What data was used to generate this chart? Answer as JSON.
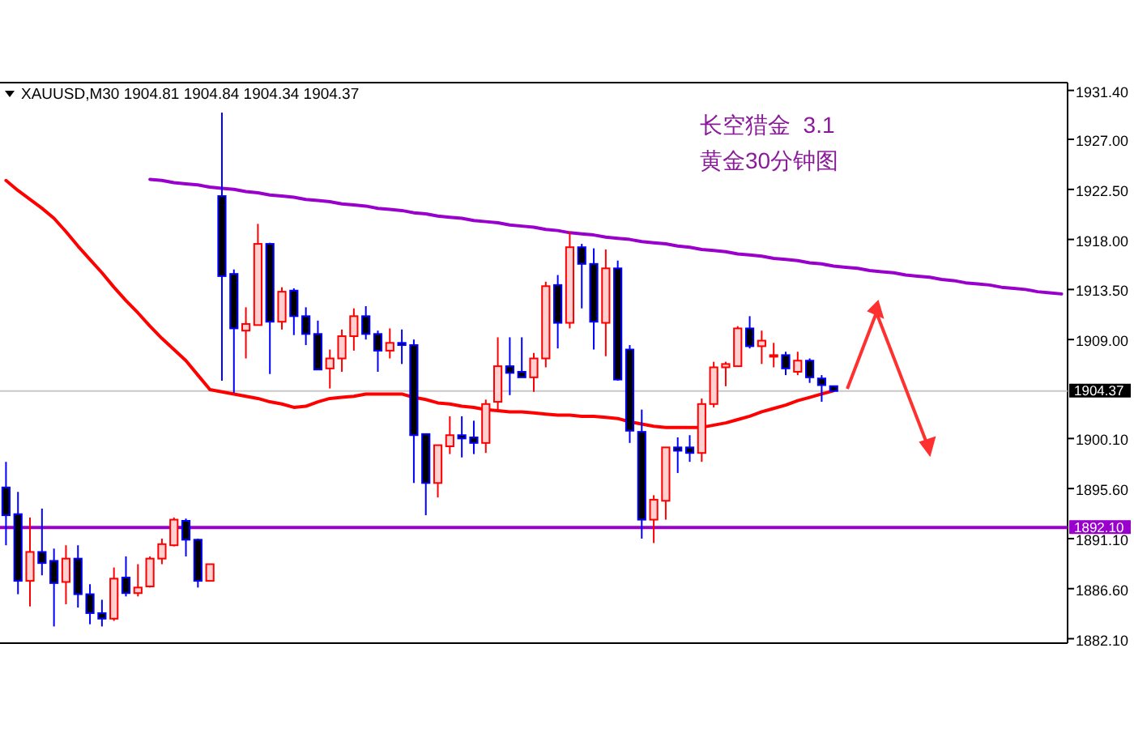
{
  "chart_data": {
    "type": "candlestick",
    "title": "XAUUSD,M30 1904.81 1904.84 1904.34 1904.37",
    "annotations": [
      "长空猎金  3.1",
      "黄金30分钟图"
    ],
    "categories": [
      null,
      null,
      null,
      null,
      null,
      null,
      null,
      null,
      null,
      null,
      null,
      null,
      null,
      null,
      null,
      null,
      null,
      null,
      null,
      null,
      null,
      null,
      null,
      null,
      null,
      null,
      null,
      null,
      null,
      null,
      null,
      null,
      null,
      null,
      null,
      null,
      null,
      null,
      null,
      null,
      null,
      null,
      null,
      null,
      null,
      null,
      null,
      null,
      null,
      null,
      null,
      null,
      null,
      null,
      null,
      null,
      null,
      null,
      null,
      null,
      null,
      null,
      null,
      null,
      null,
      null,
      null,
      null,
      null,
      null,
      null,
      null,
      null,
      null,
      null,
      null,
      null,
      null,
      null,
      null,
      null,
      null,
      null,
      null,
      null,
      null,
      null,
      null,
      null
    ],
    "ylim": [
      1881.7,
      1932.1
    ],
    "yticks": [
      {
        "value": 1931.4,
        "label": "1931.40"
      },
      {
        "value": 1927,
        "label": "1927.00"
      },
      {
        "value": 1922.5,
        "label": "1922.50"
      },
      {
        "value": 1918,
        "label": "1918.00"
      },
      {
        "value": 1913.5,
        "label": "1913.50"
      },
      {
        "value": 1909,
        "label": "1909.00"
      },
      {
        "value": 1900.1,
        "label": "1900.10"
      },
      {
        "value": 1895.6,
        "label": "1895.60"
      },
      {
        "value": 1891.1,
        "label": "1891.10"
      },
      {
        "value": 1886.6,
        "label": "1886.60"
      },
      {
        "value": 1882.1,
        "label": "1882.10"
      }
    ],
    "tick_labels": "y",
    "ohlc": [
      [
        1895.7,
        1898.0,
        1890.5,
        1893.2
      ],
      [
        1893.3,
        1895.3,
        1886.1,
        1887.3
      ],
      [
        1887.3,
        1893.0,
        1885.0,
        1889.9
      ],
      [
        1889.9,
        1893.8,
        1887.8,
        1888.9
      ],
      [
        1889.1,
        1890.2,
        1883.2,
        1887.1
      ],
      [
        1887.2,
        1890.5,
        1885.2,
        1889.3
      ],
      [
        1889.3,
        1890.5,
        1884.9,
        1886.1
      ],
      [
        1886.1,
        1887.0,
        1883.4,
        1884.4
      ],
      [
        1884.4,
        1885.6,
        1883.2,
        1883.9
      ],
      [
        1883.9,
        1888.5,
        1883.7,
        1887.5
      ],
      [
        1887.6,
        1889.5,
        1885.9,
        1886.2
      ],
      [
        1886.2,
        1888.8,
        1885.9,
        1886.7
      ],
      [
        1886.8,
        1889.5,
        1886.7,
        1889.3
      ],
      [
        1889.3,
        1891.1,
        1888.8,
        1890.6
      ],
      [
        1890.5,
        1893.0,
        1890.4,
        1892.8
      ],
      [
        1892.7,
        1892.9,
        1889.5,
        1891.0
      ],
      [
        1891.0,
        1891.1,
        1886.7,
        1887.3
      ],
      [
        1887.3,
        1888.8,
        1887.3,
        1888.8
      ],
      [
        1921.9,
        1929.4,
        1905.3,
        1914.7
      ],
      [
        1914.9,
        1915.3,
        1904.2,
        1910.0
      ],
      [
        1909.8,
        1911.9,
        1907.3,
        1910.4
      ],
      [
        1910.3,
        1919.4,
        1910.3,
        1917.6
      ],
      [
        1917.6,
        1917.7,
        1905.9,
        1910.6
      ],
      [
        1910.6,
        1913.7,
        1909.9,
        1913.3
      ],
      [
        1913.4,
        1913.6,
        1909.4,
        1911.1
      ],
      [
        1911.1,
        1911.9,
        1908.5,
        1909.5
      ],
      [
        1909.5,
        1910.7,
        1906.3,
        1906.3
      ],
      [
        1906.4,
        1908.1,
        1904.6,
        1907.3
      ],
      [
        1907.3,
        1909.9,
        1906.1,
        1909.3
      ],
      [
        1909.3,
        1911.8,
        1908.0,
        1911.1
      ],
      [
        1911.1,
        1912.0,
        1909.0,
        1909.5
      ],
      [
        1909.5,
        1909.8,
        1906.1,
        1908.0
      ],
      [
        1908.0,
        1910.0,
        1907.3,
        1908.7
      ],
      [
        1908.7,
        1909.9,
        1906.8,
        1908.5
      ],
      [
        1908.5,
        1909.0,
        1896.1,
        1900.4
      ],
      [
        1900.5,
        1900.5,
        1893.2,
        1896.1
      ],
      [
        1896.1,
        1899.5,
        1894.8,
        1899.5
      ],
      [
        1899.4,
        1902.1,
        1898.7,
        1900.4
      ],
      [
        1900.4,
        1902.1,
        1898.4,
        1900.1
      ],
      [
        1900.2,
        1901.7,
        1898.7,
        1899.7
      ],
      [
        1899.7,
        1903.6,
        1898.8,
        1903.2
      ],
      [
        1903.4,
        1909.2,
        1902.7,
        1906.6
      ],
      [
        1906.6,
        1909.2,
        1904.0,
        1906.0
      ],
      [
        1906.1,
        1909.2,
        1905.6,
        1905.6
      ],
      [
        1905.6,
        1907.8,
        1904.3,
        1907.3
      ],
      [
        1907.3,
        1914.2,
        1906.5,
        1913.8
      ],
      [
        1913.9,
        1914.8,
        1908.2,
        1910.5
      ],
      [
        1910.5,
        1918.7,
        1910.0,
        1917.3
      ],
      [
        1917.3,
        1917.6,
        1911.8,
        1915.8
      ],
      [
        1915.8,
        1917.2,
        1908.1,
        1910.6
      ],
      [
        1910.5,
        1917.1,
        1907.5,
        1915.4
      ],
      [
        1915.4,
        1916.1,
        1905.3,
        1905.4
      ],
      [
        1908.1,
        1908.5,
        1899.7,
        1900.8
      ],
      [
        1900.7,
        1902.7,
        1891.1,
        1892.8
      ],
      [
        1892.8,
        1895.0,
        1890.7,
        1894.6
      ],
      [
        1894.5,
        1899.3,
        1892.8,
        1899.3
      ],
      [
        1899.3,
        1900.2,
        1897.0,
        1899.0
      ],
      [
        1899.3,
        1900.4,
        1898.0,
        1898.8
      ],
      [
        1898.8,
        1903.7,
        1898.0,
        1903.2
      ],
      [
        1903.2,
        1907.0,
        1902.9,
        1906.5
      ],
      [
        1906.5,
        1907.0,
        1904.8,
        1906.8
      ],
      [
        1906.6,
        1910.2,
        1906.6,
        1910.0
      ],
      [
        1910.0,
        1911.1,
        1908.2,
        1908.4
      ],
      [
        1908.4,
        1909.8,
        1906.8,
        1908.9
      ],
      [
        1907.5,
        1908.7,
        1906.5,
        1907.6
      ],
      [
        1907.6,
        1907.9,
        1905.8,
        1906.4
      ],
      [
        1906.1,
        1907.9,
        1905.8,
        1907.1
      ],
      [
        1907.1,
        1907.3,
        1905.1,
        1905.6
      ],
      [
        1905.5,
        1905.8,
        1903.4,
        1904.9
      ],
      [
        1904.81,
        1904.84,
        1904.34,
        1904.37
      ],
      null,
      null,
      null,
      null,
      null,
      null,
      null,
      null,
      null,
      null,
      null,
      null,
      null,
      null,
      null,
      null,
      null,
      null,
      null
    ],
    "colors": [
      "#0000ff",
      "#0000ff",
      "#ff0000",
      "#0000ff",
      "#0000ff",
      "#ff0000",
      "#0000ff",
      "#0000ff",
      "#0000ff",
      "#ff0000",
      "#0000ff",
      "#ff0000",
      "#ff0000",
      "#ff0000",
      "#ff0000",
      "#0000ff",
      "#0000ff",
      "#ff0000",
      "#0000ff",
      "#0000ff",
      "#ff0000",
      "#ff0000",
      "#0000ff",
      "#ff0000",
      "#0000ff",
      "#0000ff",
      "#0000ff",
      "#ff0000",
      "#ff0000",
      "#ff0000",
      "#0000ff",
      "#0000ff",
      "#ff0000",
      "#0000ff",
      "#0000ff",
      "#0000ff",
      "#ff0000",
      "#ff0000",
      "#0000ff",
      "#0000ff",
      "#ff0000",
      "#ff0000",
      "#0000ff",
      "#0000ff",
      "#ff0000",
      "#ff0000",
      "#0000ff",
      "#ff0000",
      "#0000ff",
      "#0000ff",
      "#ff0000",
      "#0000ff",
      "#0000ff",
      "#0000ff",
      "#ff0000",
      "#ff0000",
      "#0000ff",
      "#0000ff",
      "#ff0000",
      "#ff0000",
      "#ff0000",
      "#ff0000",
      "#0000ff",
      "#ff0000",
      "#ff0000",
      "#0000ff",
      "#ff0000",
      "#0000ff",
      "#0000ff",
      "#0000ff",
      null,
      null,
      null,
      null,
      null,
      null,
      null,
      null,
      null,
      null,
      null,
      null,
      null,
      null,
      null,
      null,
      null,
      null,
      null
    ],
    "series": [
      {
        "type": "line",
        "color": "#ff0000",
        "values": [
          1923.3,
          1922.4,
          1921.6,
          1920.8,
          1919.9,
          1918.7,
          1917.4,
          1916.2,
          1915.0,
          1913.7,
          1912.5,
          1911.4,
          1910.2,
          1909.1,
          1908.1,
          1907.1,
          1905.8,
          1904.5,
          1904.3,
          1904.1,
          1903.9,
          1903.7,
          1903.4,
          1903.2,
          1902.9,
          1903.0,
          1903.4,
          1903.7,
          1903.8,
          1903.9,
          1904.1,
          1904.1,
          1904.1,
          1904.1,
          1903.8,
          1903.6,
          1903.3,
          1903.2,
          1903.0,
          1902.9,
          1902.7,
          1902.6,
          1902.5,
          1902.5,
          1902.4,
          1902.3,
          1902.2,
          1902.2,
          1902.1,
          1902.1,
          1902.0,
          1901.9,
          1901.6,
          1901.4,
          1901.2,
          1901.1,
          1901.1,
          1901.1,
          1901.1,
          1901.3,
          1901.5,
          1901.8,
          1902.1,
          1902.5,
          1902.8,
          1903.1,
          1903.5,
          1903.8,
          1904.1,
          1904.4,
          null,
          null,
          null,
          null,
          null,
          null,
          null,
          null,
          null,
          null,
          null,
          null,
          null,
          null,
          null,
          null,
          null,
          null,
          null
        ]
      },
      {
        "type": "line",
        "color": "#9900cc",
        "values": [
          null,
          null,
          null,
          null,
          null,
          null,
          null,
          null,
          null,
          null,
          null,
          null,
          1923.4,
          1923.3,
          1923.1,
          1923.0,
          1922.9,
          1922.7,
          1922.6,
          1922.5,
          1922.3,
          1922.2,
          1922.0,
          1921.9,
          1921.8,
          1921.6,
          1921.5,
          1921.4,
          1921.2,
          1921.1,
          1921.0,
          1920.8,
          1920.7,
          1920.6,
          1920.4,
          1920.3,
          1920.1,
          1920.0,
          1919.9,
          1919.7,
          1919.6,
          1919.5,
          1919.3,
          1919.2,
          1919.1,
          1918.9,
          1918.8,
          1918.6,
          1918.5,
          1918.4,
          1918.2,
          1918.1,
          1918.0,
          1917.8,
          1917.7,
          1917.6,
          1917.4,
          1917.3,
          1917.1,
          1917.0,
          1916.9,
          1916.7,
          1916.6,
          1916.5,
          1916.3,
          1916.2,
          1916.1,
          1915.9,
          1915.8,
          1915.6,
          1915.5,
          1915.4,
          1915.2,
          1915.1,
          1915.0,
          1914.8,
          1914.7,
          1914.6,
          1914.4,
          1914.3,
          1914.1,
          1914.0,
          1913.9,
          1913.7,
          1913.6,
          1913.5,
          1913.3,
          1913.2,
          1913.1
        ]
      }
    ],
    "ref_lines": [
      {
        "axis": "y",
        "value": 1892.1,
        "label": "1892.10",
        "color": "#9900cc"
      },
      {
        "axis": "y",
        "value": 1904.37,
        "label": "1904.37",
        "color": "#c8c8c8"
      }
    ]
  }
}
